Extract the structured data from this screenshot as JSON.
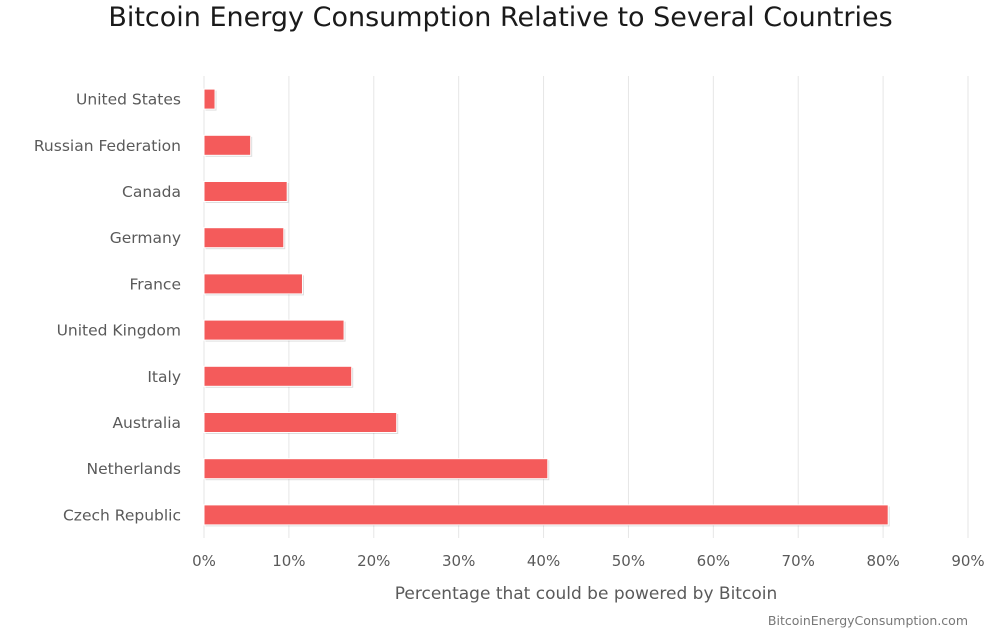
{
  "chart_data": {
    "type": "bar",
    "orientation": "horizontal",
    "title": "Bitcoin Energy Consumption Relative to Several Countries",
    "xlabel": "Percentage that could be powered by Bitcoin",
    "ylabel": "",
    "categories": [
      "United States",
      "Russian Federation",
      "Canada",
      "Germany",
      "France",
      "United Kingdom",
      "Italy",
      "Australia",
      "Netherlands",
      "Czech Republic"
    ],
    "values": [
      1.3,
      5.5,
      9.8,
      9.4,
      11.6,
      16.5,
      17.4,
      22.7,
      40.5,
      80.6
    ],
    "xlim": [
      0,
      90
    ],
    "ticks": [
      0,
      10,
      20,
      30,
      40,
      50,
      60,
      70,
      80,
      90
    ],
    "tick_labels": [
      "0%",
      "10%",
      "20%",
      "30%",
      "40%",
      "50%",
      "60%",
      "70%",
      "80%",
      "90%"
    ],
    "grid": true,
    "bar_color": "#f45b5b",
    "credit": "BitcoinEnergyConsumption.com"
  }
}
